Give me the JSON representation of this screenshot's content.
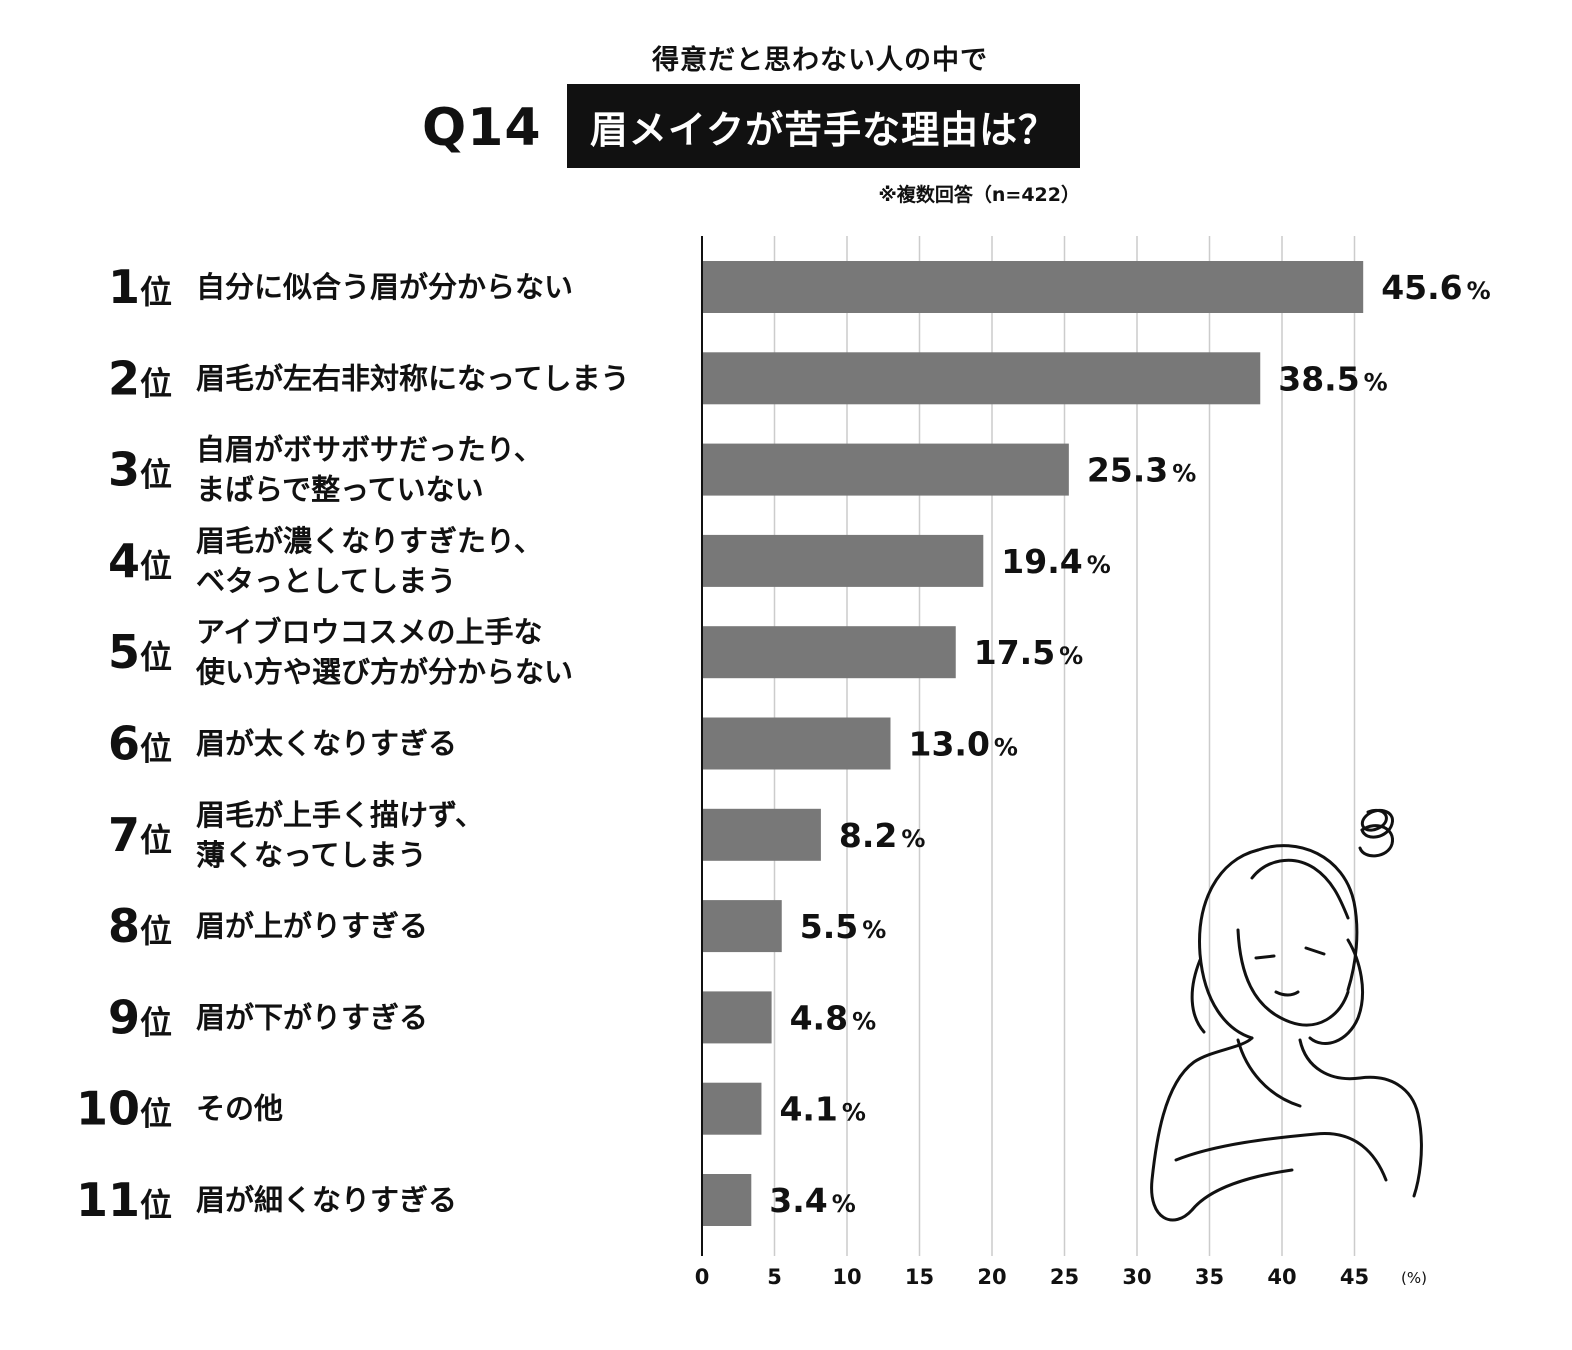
{
  "header": {
    "subtitle": "得意だと思わない人の中で",
    "question_number": "Q14",
    "title": "眉メイクが苦手な理由は？",
    "note": "※複数回答（n=422）"
  },
  "chart_data": {
    "type": "bar",
    "orientation": "horizontal",
    "value_suffix": "%",
    "ranks": [
      "1位",
      "2位",
      "3位",
      "4位",
      "5位",
      "6位",
      "7位",
      "8位",
      "9位",
      "10位",
      "11位"
    ],
    "categories": [
      [
        "自分に似合う眉が分からない"
      ],
      [
        "眉毛が左右非対称になってしまう"
      ],
      [
        "自眉がボサボサだったり、",
        "まばらで整っていない"
      ],
      [
        "眉毛が濃くなりすぎたり、",
        "ベタっとしてしまう"
      ],
      [
        "アイブロウコスメの上手な",
        "使い方や選び方が分からない"
      ],
      [
        "眉が太くなりすぎる"
      ],
      [
        "眉毛が上手く描けず、",
        "薄くなってしまう"
      ],
      [
        "眉が上がりすぎる"
      ],
      [
        "眉が下がりすぎる"
      ],
      [
        "その他"
      ],
      [
        "眉が細くなりすぎる"
      ]
    ],
    "values": [
      45.6,
      38.5,
      25.3,
      19.4,
      17.5,
      13.0,
      8.2,
      5.5,
      4.8,
      4.1,
      3.4
    ],
    "value_labels": [
      "45.6",
      "38.5",
      "25.3",
      "19.4",
      "17.5",
      "13.0",
      "8.2",
      "5.5",
      "4.8",
      "4.1",
      "3.4"
    ],
    "xlim": [
      0,
      47
    ],
    "xticks": [
      0,
      5,
      10,
      15,
      20,
      25,
      30,
      35,
      40,
      45
    ],
    "xunit": "(%)",
    "grid": true,
    "bar_color": "#787878",
    "grid_color": "#cccccc",
    "axis_color": "#111111"
  }
}
